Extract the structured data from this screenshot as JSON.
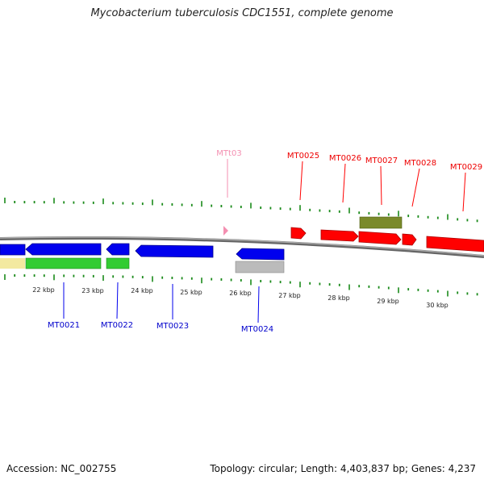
{
  "title": "Mycobacterium tuberculosis CDC1551, complete genome",
  "footer": {
    "accession": "Accession: NC_002755",
    "summary": "Topology: circular; Length: 4,403,837 bp; Genes: 4,237"
  },
  "colors": {
    "forward": "#ff0000",
    "reverse": "#0000ee",
    "trna": "#f48fb1",
    "pseudo": "#7a8a2a",
    "rna_gray": "#bbbbbb",
    "lane_green": "#33cc33",
    "lane_yellow": "#f3e9a0",
    "tick": "#1a8a1a",
    "backbone": "#888888"
  },
  "scale_labels": [
    "22 kbp",
    "23 kbp",
    "24 kbp",
    "25 kbp",
    "26 kbp",
    "27 kbp",
    "28 kbp",
    "29 kbp",
    "30 kbp"
  ],
  "gene_labels": {
    "forward": [
      "MTt03",
      "MT0025",
      "MT0026",
      "MT0027",
      "MT0028",
      "MT0029"
    ],
    "reverse": [
      "MT0021",
      "MT0022",
      "MT0023",
      "MT0024"
    ]
  }
}
